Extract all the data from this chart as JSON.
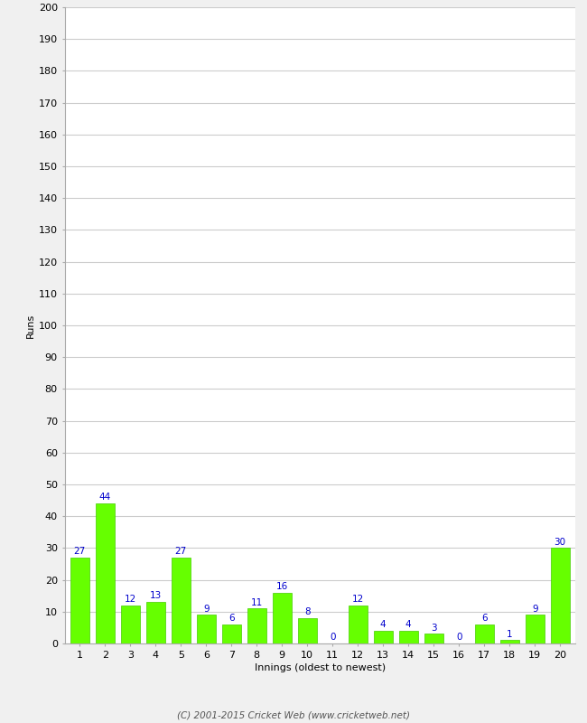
{
  "innings": [
    1,
    2,
    3,
    4,
    5,
    6,
    7,
    8,
    9,
    10,
    11,
    12,
    13,
    14,
    15,
    16,
    17,
    18,
    19,
    20
  ],
  "runs": [
    27,
    44,
    12,
    13,
    27,
    9,
    6,
    11,
    16,
    8,
    0,
    12,
    4,
    4,
    3,
    0,
    6,
    1,
    9,
    30
  ],
  "bar_color": "#66ff00",
  "bar_edge_color": "#44cc00",
  "label_color": "#0000cc",
  "ylabel": "Runs",
  "xlabel": "Innings (oldest to newest)",
  "ylim": [
    0,
    200
  ],
  "yticks": [
    0,
    10,
    20,
    30,
    40,
    50,
    60,
    70,
    80,
    90,
    100,
    110,
    120,
    130,
    140,
    150,
    160,
    170,
    180,
    190,
    200
  ],
  "grid_color": "#cccccc",
  "plot_bg_color": "#ffffff",
  "fig_bg_color": "#f0f0f0",
  "footer": "(C) 2001-2015 Cricket Web (www.cricketweb.net)",
  "footer_color": "#555555",
  "label_fontsize": 7.5,
  "axis_fontsize": 8,
  "ylabel_fontsize": 8
}
